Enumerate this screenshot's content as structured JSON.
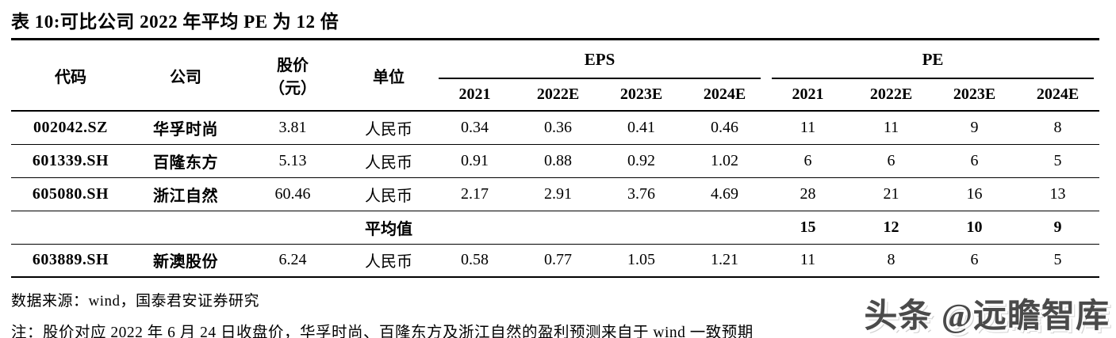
{
  "title": "表 10:可比公司 2022 年平均 PE 为 12 倍",
  "table": {
    "headers": {
      "code": "代码",
      "company": "公司",
      "price_line1": "股价",
      "price_line2": "（元）",
      "unit": "单位",
      "eps_group": "EPS",
      "pe_group": "PE",
      "years": [
        "2021",
        "2022E",
        "2023E",
        "2024E"
      ]
    },
    "rows": [
      {
        "code": "002042.SZ",
        "company": "华孚时尚",
        "price": "3.81",
        "unit": "人民币",
        "eps": [
          "0.34",
          "0.36",
          "0.41",
          "0.46"
        ],
        "pe": [
          "11",
          "11",
          "9",
          "8"
        ],
        "bold_values": false
      },
      {
        "code": "601339.SH",
        "company": "百隆东方",
        "price": "5.13",
        "unit": "人民币",
        "eps": [
          "0.91",
          "0.88",
          "0.92",
          "1.02"
        ],
        "pe": [
          "6",
          "6",
          "6",
          "5"
        ],
        "bold_values": false
      },
      {
        "code": "605080.SH",
        "company": "浙江自然",
        "price": "60.46",
        "unit": "人民币",
        "eps": [
          "2.17",
          "2.91",
          "3.76",
          "4.69"
        ],
        "pe": [
          "28",
          "21",
          "16",
          "13"
        ],
        "bold_values": false
      },
      {
        "code": "",
        "company": "",
        "price": "",
        "unit": "平均值",
        "eps": [
          "",
          "",
          "",
          ""
        ],
        "pe": [
          "15",
          "12",
          "10",
          "9"
        ],
        "bold_values": true
      },
      {
        "code": "603889.SH",
        "company": "新澳股份",
        "price": "6.24",
        "unit": "人民币",
        "eps": [
          "0.58",
          "0.77",
          "1.05",
          "1.21"
        ],
        "pe": [
          "11",
          "8",
          "6",
          "5"
        ],
        "bold_values": false
      }
    ]
  },
  "footer": {
    "source": "数据来源：wind，国泰君安证券研究",
    "note": "注：股价对应 2022 年 6 月 24 日收盘价，华孚时尚、百隆东方及浙江自然的盈利预测来自于 wind 一致预期",
    "watermark": "头条 @远瞻智库"
  },
  "colors": {
    "text": "#000000",
    "background": "#ffffff",
    "rule": "#000000",
    "watermark": "#4a4a4a"
  }
}
